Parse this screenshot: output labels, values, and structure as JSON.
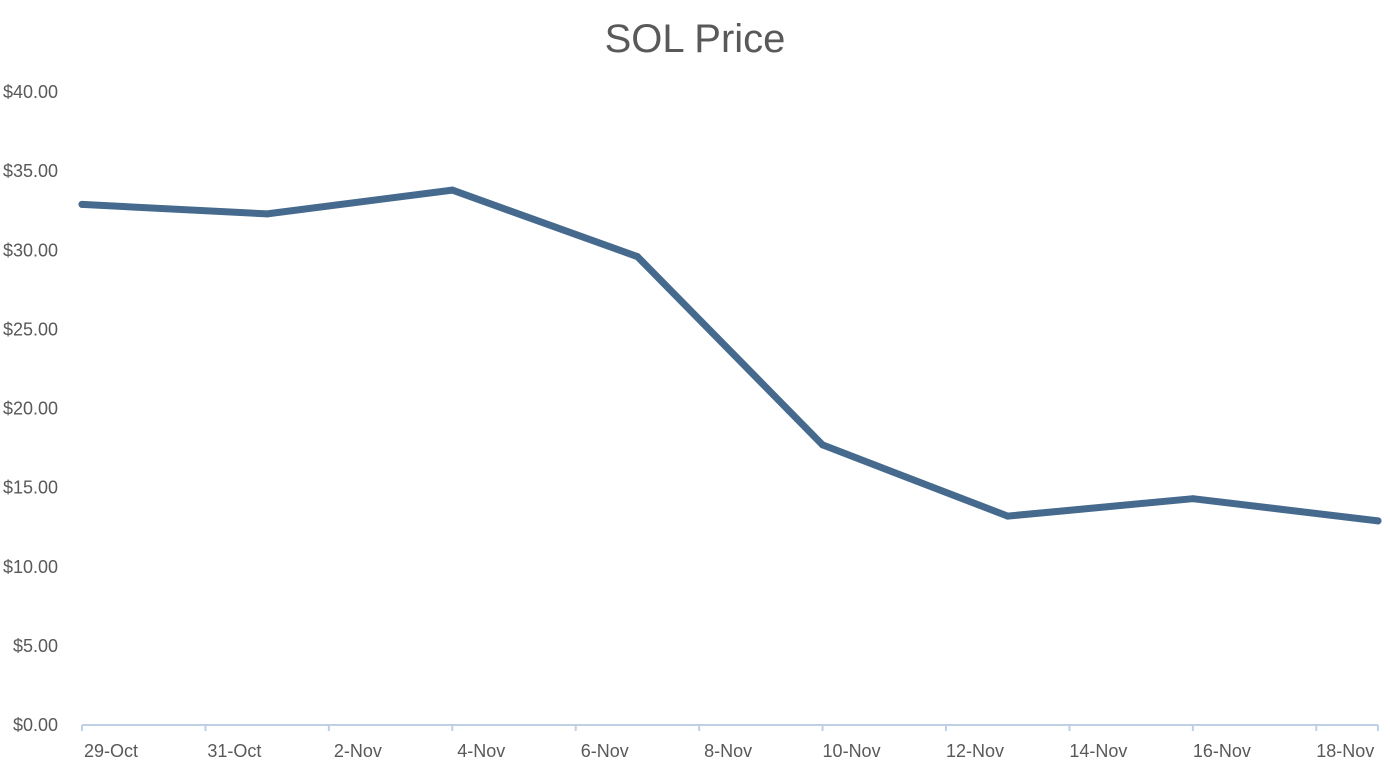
{
  "chart_data": {
    "type": "line",
    "title": "SOL Price",
    "xlabel": "",
    "ylabel": "",
    "grid": false,
    "legend": "none",
    "x_range": [
      "29-Oct",
      "19-Nov"
    ],
    "x_tick_labels": [
      "29-Oct",
      "31-Oct",
      "2-Nov",
      "4-Nov",
      "6-Nov",
      "8-Nov",
      "10-Nov",
      "12-Nov",
      "14-Nov",
      "16-Nov",
      "18-Nov"
    ],
    "ylim": [
      0,
      40
    ],
    "y_tick_values": [
      0,
      5,
      10,
      15,
      20,
      25,
      30,
      35,
      40
    ],
    "y_tick_labels": [
      "$0.00",
      "$5.00",
      "$10.00",
      "$15.00",
      "$20.00",
      "$25.00",
      "$30.00",
      "$35.00",
      "$40.00"
    ],
    "x": [
      "29-Oct",
      "1-Nov",
      "4-Nov",
      "7-Nov",
      "10-Nov",
      "13-Nov",
      "16-Nov",
      "19-Nov"
    ],
    "series": [
      {
        "values": [
          32.9,
          32.3,
          33.8,
          29.6,
          17.7,
          13.2,
          14.3,
          12.9
        ],
        "color": "#456a8e"
      }
    ],
    "colors": {
      "line": "#456a8e",
      "axis": "#bfcfe6",
      "text": "#595959",
      "title": "#595959"
    }
  }
}
